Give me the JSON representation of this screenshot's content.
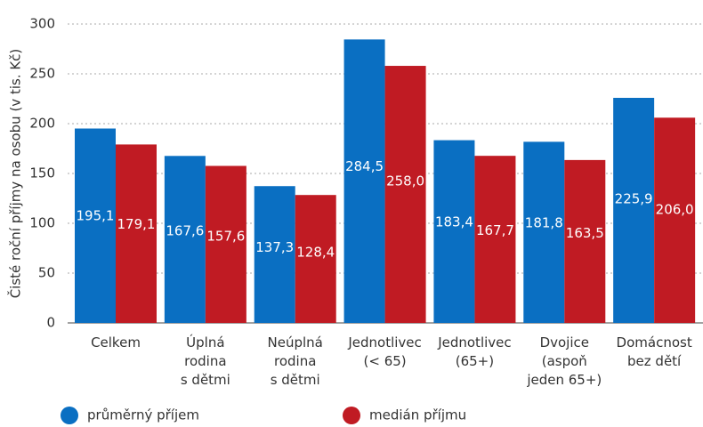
{
  "chart_data": {
    "type": "bar",
    "ylabel": "Čisté roční příjmy na osobu (v tis. Kč)",
    "categories": [
      "Celkem",
      "Úplná\nrodina\ns dětmi",
      "Neúplná\nrodina\ns dětmi",
      "Jednotlivec\n(< 65)",
      "Jednotlivec\n(65+)",
      "Dvojice\n(aspoň\njeden 65+)",
      "Domácnost\nbez dětí"
    ],
    "series": [
      {
        "name": "průměrný příjem",
        "color": "#0a6fc2",
        "values": [
          195.1,
          167.6,
          137.3,
          284.5,
          183.4,
          181.8,
          225.9
        ],
        "value_labels": [
          "195,1",
          "167,6",
          "137,3",
          "284,5",
          "183,4",
          "181,8",
          "225,9"
        ]
      },
      {
        "name": "medián příjmu",
        "color": "#c01b23",
        "values": [
          179.1,
          157.6,
          128.4,
          258.0,
          167.7,
          163.5,
          206.0
        ],
        "value_labels": [
          "179,1",
          "157,6",
          "128,4",
          "258,0",
          "167,7",
          "163,5",
          "206,0"
        ]
      }
    ],
    "ylim": [
      0,
      300
    ],
    "yticks": [
      0,
      50,
      100,
      150,
      200,
      250,
      300
    ],
    "grid": true,
    "legend": "bottom"
  }
}
